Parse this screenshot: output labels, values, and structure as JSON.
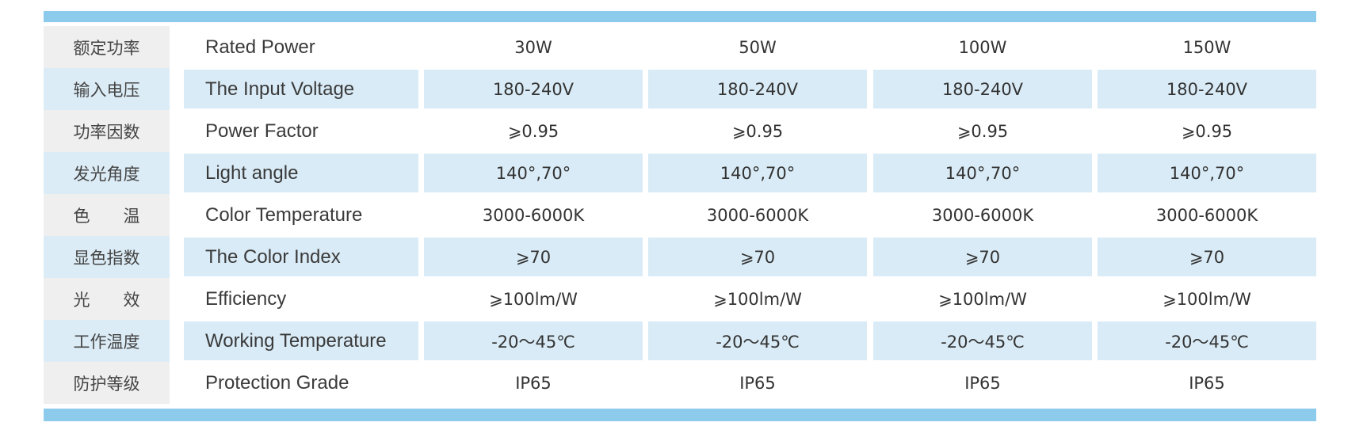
{
  "table": {
    "rows": [
      {
        "cn": "额定功率",
        "en": "Rated Power",
        "values": [
          "30W",
          "50W",
          "100W",
          "150W"
        ]
      },
      {
        "cn": "输入电压",
        "en": "The Input Voltage",
        "values": [
          "180-240V",
          "180-240V",
          "180-240V",
          "180-240V"
        ]
      },
      {
        "cn": "功率因数",
        "en": "Power Factor",
        "values": [
          "⩾0.95",
          "⩾0.95",
          "⩾0.95",
          "⩾0.95"
        ]
      },
      {
        "cn": "发光角度",
        "en": "Light angle",
        "values": [
          "140°,70°",
          "140°,70°",
          "140°,70°",
          "140°,70°"
        ]
      },
      {
        "cn": "色　　温",
        "en": "Color Temperature",
        "values": [
          "3000-6000K",
          "3000-6000K",
          "3000-6000K",
          "3000-6000K"
        ]
      },
      {
        "cn": "显色指数",
        "en": "The Color Index",
        "values": [
          "⩾70",
          "⩾70",
          "⩾70",
          "⩾70"
        ]
      },
      {
        "cn": "光　　效",
        "en": "Efficiency",
        "values": [
          "⩾100lm/W",
          "⩾100lm/W",
          "⩾100lm/W",
          "⩾100lm/W"
        ]
      },
      {
        "cn": "工作温度",
        "en": "Working Temperature",
        "values": [
          "-20～45℃",
          "-20～45℃",
          "-20～45℃",
          "-20～45℃"
        ]
      },
      {
        "cn": "防护等级",
        "en": "Protection Grade",
        "values": [
          "IP65",
          "IP65",
          "IP65",
          "IP65"
        ]
      }
    ]
  }
}
